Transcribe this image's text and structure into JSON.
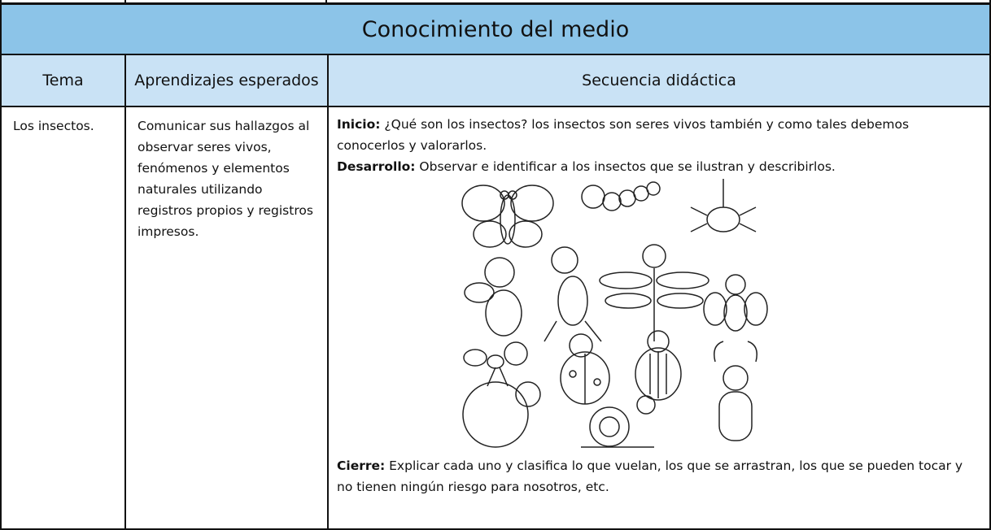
{
  "title": "Conocimiento del medio",
  "headers": [
    "Tema",
    "Aprendizajes esperados",
    "Secuencia didáctica"
  ],
  "row": {
    "tema": "Los insectos.",
    "aprendizajes": "Comunicar sus hallazgos al observar seres vivos, fenómenos y elementos naturales utilizando registros propios y registros impresos.",
    "secuencia": {
      "inicio_label": "Inicio:",
      "inicio_text": "¿Qué son los insectos? los insectos son seres vivos también y como tales debemos conocerlos y valorarlos.",
      "desarrollo_label": "Desarrollo:",
      "desarrollo_text": "Observar e identificar a los insectos que se ilustran y describirlos.",
      "cierre_label": "Cierre:",
      "cierre_text": "Explicar cada uno y clasifica lo que vuelan, los que se arrastran, los que se pueden tocar  y no tienen ningún riesgo para nosotros, etc."
    }
  }
}
